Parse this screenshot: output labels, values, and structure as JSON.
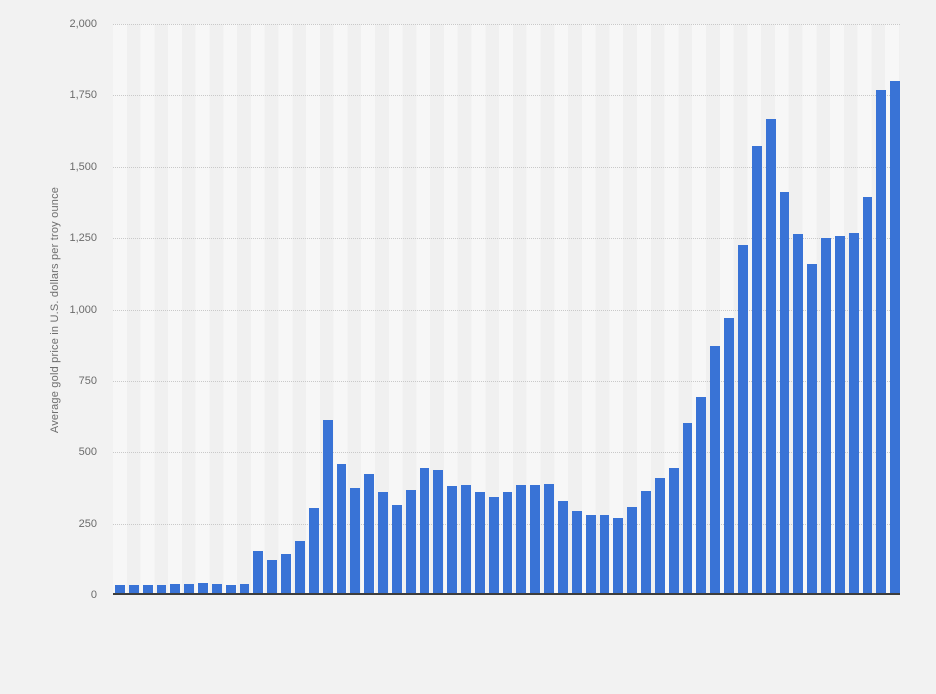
{
  "page": {
    "background_color": "#f2f2f2"
  },
  "chart_data": {
    "type": "bar",
    "title": "",
    "xlabel": "",
    "ylabel": "Average gold price in U.S. dollars per troy ounce",
    "ylim": [
      0,
      2000
    ],
    "y_tick_interval": 250,
    "y_tick_labels": [
      "2,000",
      "1,750",
      "1,500",
      "1,250",
      "1,000",
      "750",
      "500",
      "250",
      "0"
    ],
    "y_tick_values": [
      2000,
      1750,
      1500,
      1250,
      1000,
      750,
      500,
      250,
      0
    ],
    "x_tick_labels_visible": false,
    "grid": "horizontal dotted lines, no vertical gridlines, alternating vertical background bands per bar",
    "legend": "none",
    "bar_color": "#3973d6",
    "values": [
      35,
      35,
      35,
      36,
      38,
      40,
      41,
      40,
      36,
      38,
      155,
      124,
      145,
      190,
      305,
      612,
      460,
      375,
      423,
      360,
      317,
      368,
      446,
      437,
      381,
      384,
      362,
      344,
      360,
      384,
      384,
      388,
      331,
      294,
      279,
      279,
      271,
      310,
      363,
      410,
      445,
      603,
      695,
      872,
      972,
      1225,
      1572,
      1669,
      1411,
      1266,
      1160,
      1251,
      1257,
      1268,
      1393,
      1770,
      1799
    ]
  }
}
